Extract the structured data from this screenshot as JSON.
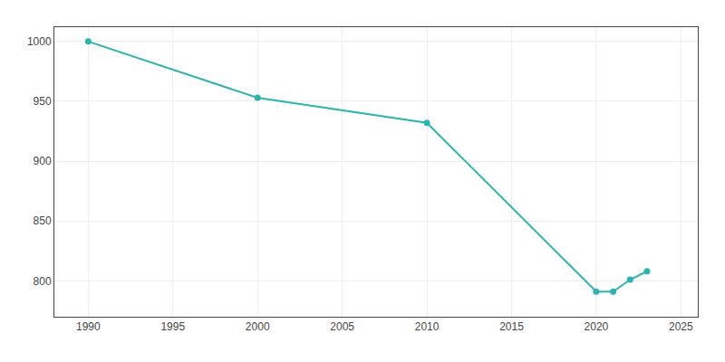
{
  "chart_data": {
    "type": "line",
    "x": [
      1990,
      2000,
      2010,
      2020,
      2021,
      2022,
      2023
    ],
    "values": [
      1000,
      953,
      932,
      791,
      791,
      801,
      808
    ],
    "color": "#2ab5b0",
    "marker": "circle",
    "xlim": [
      1988,
      2026
    ],
    "ylim": [
      770,
      1012
    ],
    "xticks": [
      1990,
      1995,
      2000,
      2005,
      2010,
      2015,
      2020,
      2025
    ],
    "yticks": [
      800,
      850,
      900,
      950,
      1000
    ],
    "grid": true
  }
}
